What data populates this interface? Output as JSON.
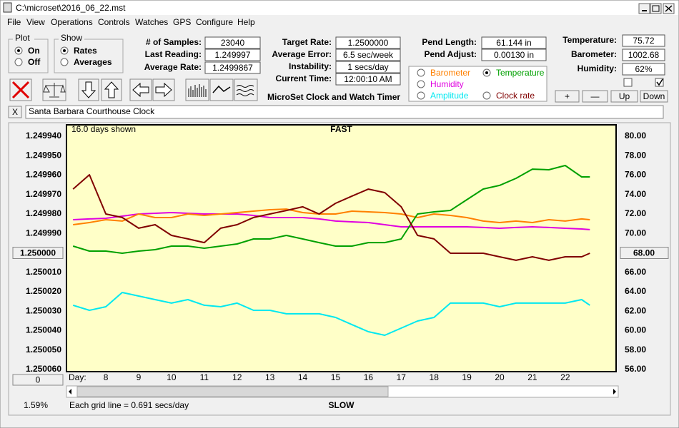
{
  "window": {
    "title": "C:\\microset\\2016_06_22.mst"
  },
  "menu": [
    "File",
    "View",
    "Operations",
    "Controls",
    "Watches",
    "GPS",
    "Configure",
    "Help"
  ],
  "plot_group": {
    "title": "Plot",
    "options": [
      "On",
      "Off"
    ]
  },
  "show_group": {
    "title": "Show",
    "options": [
      "Rates",
      "Averages"
    ]
  },
  "fields": [
    {
      "label": "# of Samples:",
      "value": "23040"
    },
    {
      "label": "Last Reading:",
      "value": "1.249997"
    },
    {
      "label": "Average Rate:",
      "value": "1.2499867"
    },
    {
      "label": "Target Rate:",
      "value": "1.2500000"
    },
    {
      "label": "Average Error:",
      "value": "6.5 sec/week"
    },
    {
      "label": "Instability:",
      "value": "1 secs/day"
    },
    {
      "label": "Current Time:",
      "value": "12:00:10 AM"
    },
    {
      "label": "Pend Length:",
      "value": "61.144 in"
    },
    {
      "label": "Pend Adjust:",
      "value": "0.00130 in"
    },
    {
      "label": "Temperature:",
      "value": "75.72"
    },
    {
      "label": "Barometer:",
      "value": "1002.68"
    },
    {
      "label": "Humidity:",
      "value": "62%"
    }
  ],
  "app_label": "MicroSet Clock and Watch Timer",
  "buttons": [
    "+",
    "—",
    "Up",
    "Down"
  ],
  "clock_name": "Santa Barbara Courthouse Clock",
  "close_label": "X",
  "status": {
    "percent": "1.59%",
    "offset": "0",
    "grid_note": "Each grid line = 0.691 secs/day"
  },
  "chart_data": {
    "type": "line",
    "top_label": "FAST",
    "bottom_label": "SLOW",
    "span_label": "16.0 days shown",
    "x_label": "Day:",
    "xlim": [
      6.8,
      23.55
    ],
    "xticks": [
      8,
      9,
      10,
      11,
      12,
      13,
      14,
      15,
      16,
      17,
      18,
      19,
      20,
      21,
      22
    ],
    "ylim": [
      1.25006,
      1.24994
    ],
    "yticks": [
      {
        "value": 1.24994,
        "label": "1.249940"
      },
      {
        "value": 1.24995,
        "label": "1.249950"
      },
      {
        "value": 1.24996,
        "label": "1.249960"
      },
      {
        "value": 1.24997,
        "label": "1.249970"
      },
      {
        "value": 1.24998,
        "label": "1.249980"
      },
      {
        "value": 1.24999,
        "label": "1.249990"
      },
      {
        "value": 1.25,
        "label": "1.250000"
      },
      {
        "value": 1.25001,
        "label": "1.250010"
      },
      {
        "value": 1.25002,
        "label": "1.250020"
      },
      {
        "value": 1.25003,
        "label": "1.250030"
      },
      {
        "value": 1.25004,
        "label": "1.250040"
      },
      {
        "value": 1.25005,
        "label": "1.250050"
      },
      {
        "value": 1.25006,
        "label": "1.250060"
      }
    ],
    "y2lim": [
      56,
      80
    ],
    "y2ticks": [
      {
        "value": 80,
        "label": "80.00"
      },
      {
        "value": 78,
        "label": "78.00"
      },
      {
        "value": 76,
        "label": "76.00"
      },
      {
        "value": 74,
        "label": "74.00"
      },
      {
        "value": 72,
        "label": "72.00"
      },
      {
        "value": 70,
        "label": "70.00"
      },
      {
        "value": 68,
        "label": "68.00"
      },
      {
        "value": 66,
        "label": "66.00"
      },
      {
        "value": 64,
        "label": "64.00"
      },
      {
        "value": 62,
        "label": "62.00"
      },
      {
        "value": 60,
        "label": "60.00"
      },
      {
        "value": 58,
        "label": "58.00"
      },
      {
        "value": 56,
        "label": "56.00"
      }
    ],
    "grid": false,
    "background": "#ffffc8",
    "x": [
      7,
      7.5,
      8,
      8.5,
      9,
      9.5,
      10,
      10.5,
      11,
      11.5,
      12,
      12.5,
      13,
      13.5,
      14,
      14.5,
      15,
      15.5,
      16,
      16.5,
      17,
      17.5,
      18,
      18.5,
      19,
      19.5,
      20,
      20.5,
      21,
      21.5,
      22,
      22.5,
      22.75
    ],
    "series": [
      {
        "name": "Clock rate",
        "color": "#800000",
        "values": [
          1.2499672,
          1.2499598,
          1.24998,
          1.2499818,
          1.2499873,
          1.2499855,
          1.249991,
          1.2499928,
          1.2499947,
          1.2499873,
          1.2499855,
          1.2499818,
          1.24998,
          1.2499782,
          1.2499763,
          1.24998,
          1.2499745,
          1.2499708,
          1.2499672,
          1.249969,
          1.2499763,
          1.249991,
          1.2499928,
          1.2500002,
          1.2500002,
          1.2500002,
          1.250002,
          1.2500038,
          1.250002,
          1.2500038,
          1.250002,
          1.250002,
          1.2500002
        ]
      },
      {
        "name": "Temperature",
        "color": "#00a000",
        "axis": "y2",
        "values": [
          68.7,
          68.18,
          68.18,
          67.96,
          68.18,
          68.33,
          68.7,
          68.7,
          68.48,
          68.7,
          68.92,
          69.43,
          69.43,
          69.8,
          69.43,
          69.06,
          68.7,
          68.7,
          69.06,
          69.06,
          69.43,
          72.0,
          72.22,
          72.37,
          73.47,
          74.57,
          74.94,
          75.67,
          76.62,
          76.55,
          76.99,
          75.82,
          75.82
        ]
      },
      {
        "name": "Barometer",
        "color": "#ff8000",
        "axis": "y2",
        "values": [
          70.9,
          71.12,
          71.41,
          71.27,
          72.0,
          71.63,
          71.63,
          72.0,
          71.85,
          72.0,
          72.15,
          72.29,
          72.44,
          72.51,
          72.15,
          72.0,
          72.0,
          72.29,
          72.22,
          72.15,
          72.0,
          71.63,
          72.0,
          71.85,
          71.63,
          71.27,
          71.12,
          71.27,
          71.12,
          71.41,
          71.27,
          71.49,
          71.41
        ]
      },
      {
        "name": "Humidity",
        "color": "#e000e0",
        "axis": "y2",
        "values": [
          71.41,
          71.49,
          71.56,
          71.78,
          72.0,
          72.07,
          72.15,
          72.07,
          72.0,
          72.0,
          72.0,
          71.85,
          71.63,
          71.63,
          71.63,
          71.49,
          71.27,
          71.19,
          71.12,
          70.9,
          70.68,
          70.68,
          70.68,
          70.68,
          70.68,
          70.61,
          70.53,
          70.61,
          70.68,
          70.61,
          70.53,
          70.46,
          70.39
        ]
      },
      {
        "name": "Amplitude",
        "color": "#00e8f0",
        "axis": "y2",
        "values": [
          62.61,
          62.09,
          62.46,
          63.93,
          63.56,
          63.19,
          62.83,
          63.19,
          62.61,
          62.46,
          62.83,
          62.09,
          62.09,
          61.73,
          61.73,
          61.73,
          61.36,
          60.62,
          59.89,
          59.52,
          60.26,
          60.99,
          61.36,
          62.83,
          62.83,
          62.83,
          62.46,
          62.83,
          62.83,
          62.83,
          62.83,
          63.19,
          62.61
        ]
      }
    ]
  }
}
